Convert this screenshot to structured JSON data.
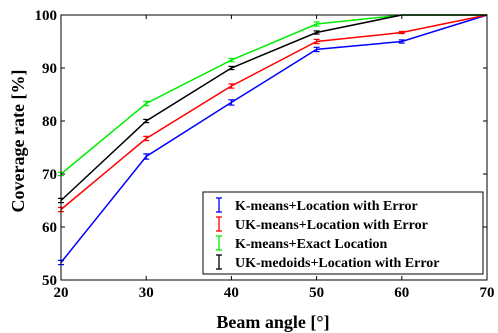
{
  "chart_data": {
    "type": "line",
    "title": "",
    "xlabel": "Beam angle [°]",
    "ylabel": "Coverage rate [%]",
    "xlim": [
      20,
      70
    ],
    "ylim": [
      50,
      100
    ],
    "x": [
      20,
      30,
      40,
      50,
      60,
      70
    ],
    "xticks": [
      "20",
      "30",
      "40",
      "50",
      "60",
      "70"
    ],
    "yticks": [
      "50",
      "60",
      "70",
      "80",
      "90",
      "100"
    ],
    "grid": false,
    "legend_position": "bottom-right",
    "series": [
      {
        "name": "K-means+Location with Error",
        "color": "#0000ff",
        "values": [
          53.3,
          73.3,
          83.5,
          93.5,
          95.0,
          100
        ],
        "errors": [
          0.4,
          0.5,
          0.5,
          0.4,
          0.3,
          0
        ]
      },
      {
        "name": "UK-means+Location with Error",
        "color": "#ff0000",
        "values": [
          63.3,
          76.7,
          86.6,
          95.0,
          96.7,
          100
        ],
        "errors": [
          0.4,
          0.4,
          0.4,
          0.4,
          0.2,
          0
        ]
      },
      {
        "name": "K-means+Exact Location",
        "color": "#00ee00",
        "values": [
          70.0,
          83.3,
          91.5,
          98.3,
          100,
          100
        ],
        "errors": [
          0.3,
          0.4,
          0.3,
          0.4,
          0,
          0
        ]
      },
      {
        "name": "UK-medoids+Location with Error",
        "color": "#000000",
        "values": [
          65.0,
          80.0,
          90.0,
          96.7,
          100,
          100
        ],
        "errors": [
          0.4,
          0.3,
          0.3,
          0.3,
          0,
          0
        ]
      }
    ]
  }
}
